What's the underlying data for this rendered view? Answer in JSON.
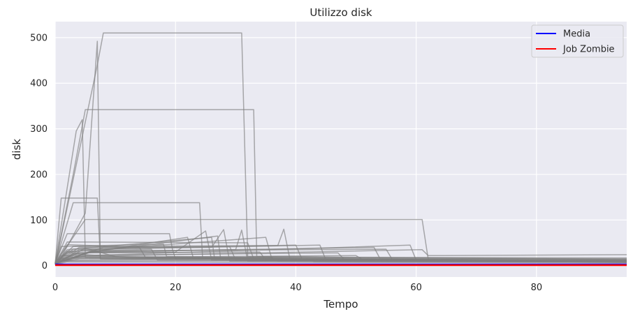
{
  "chart_data": {
    "type": "line",
    "title": "Utilizzo disk",
    "xlabel": "Tempo",
    "ylabel": "disk",
    "xlim": [
      0,
      95
    ],
    "ylim": [
      -25,
      535
    ],
    "xticks": [
      0,
      20,
      40,
      60,
      80
    ],
    "yticks": [
      0,
      100,
      200,
      300,
      400,
      500
    ],
    "grid": true,
    "legend_position": "top-right",
    "colors": {
      "background": "#eaeaf2",
      "grid": "#ffffff",
      "jobs": "#808080",
      "media": "#0000ff",
      "zombie": "#ff0000"
    },
    "legend": [
      {
        "label": "Media",
        "color": "#0000ff"
      },
      {
        "label": "Job Zombie",
        "color": "#ff0000"
      }
    ],
    "series": [
      {
        "values": [
          [
            0,
            2
          ],
          [
            0.5,
            6
          ],
          [
            5,
            115
          ],
          [
            7,
            492
          ],
          [
            7.5,
            15
          ],
          [
            95,
            12
          ]
        ]
      },
      {
        "values": [
          [
            0,
            2
          ],
          [
            7,
            440
          ],
          [
            8,
            510
          ],
          [
            31,
            510
          ],
          [
            32,
            20
          ],
          [
            95,
            14
          ]
        ]
      },
      {
        "values": [
          [
            0,
            2
          ],
          [
            3,
            200
          ],
          [
            5,
            342
          ],
          [
            33,
            342
          ],
          [
            33.5,
            20
          ],
          [
            95,
            13
          ]
        ]
      },
      {
        "values": [
          [
            0,
            5
          ],
          [
            3.5,
            295
          ],
          [
            4.5,
            320
          ],
          [
            5,
            18
          ],
          [
            95,
            11
          ]
        ]
      },
      {
        "values": [
          [
            0,
            5
          ],
          [
            1,
            148
          ],
          [
            7,
            148
          ],
          [
            7.5,
            15
          ],
          [
            95,
            10
          ]
        ]
      },
      {
        "values": [
          [
            0,
            5
          ],
          [
            3,
            138
          ],
          [
            24,
            138
          ],
          [
            24.5,
            15
          ],
          [
            95,
            10
          ]
        ]
      },
      {
        "values": [
          [
            0,
            5
          ],
          [
            5,
            101
          ],
          [
            61,
            101
          ],
          [
            62,
            14
          ],
          [
            95,
            12
          ]
        ]
      },
      {
        "values": [
          [
            0,
            5
          ],
          [
            1,
            38
          ],
          [
            2,
            70
          ],
          [
            19,
            70
          ],
          [
            19.5,
            35
          ],
          [
            20,
            15
          ],
          [
            95,
            9
          ]
        ]
      },
      {
        "values": [
          [
            0,
            5
          ],
          [
            2,
            52
          ],
          [
            32,
            50
          ],
          [
            33,
            15
          ],
          [
            95,
            9
          ]
        ]
      },
      {
        "values": [
          [
            0,
            5
          ],
          [
            4,
            40
          ],
          [
            26,
            40
          ],
          [
            28,
            79
          ],
          [
            29,
            10
          ],
          [
            95,
            8
          ]
        ]
      },
      {
        "values": [
          [
            0,
            5
          ],
          [
            3,
            42
          ],
          [
            37,
            44
          ],
          [
            38,
            80
          ],
          [
            39,
            15
          ],
          [
            95,
            10
          ]
        ]
      },
      {
        "values": [
          [
            0,
            5
          ],
          [
            6,
            30
          ],
          [
            30,
            35
          ],
          [
            31,
            78
          ],
          [
            32,
            10
          ],
          [
            95,
            8
          ]
        ]
      },
      {
        "values": [
          [
            0,
            5
          ],
          [
            2,
            28
          ],
          [
            20,
            30
          ],
          [
            25,
            76
          ],
          [
            26,
            12
          ],
          [
            95,
            8
          ]
        ]
      },
      {
        "values": [
          [
            0,
            5
          ],
          [
            4,
            35
          ],
          [
            44,
            45
          ],
          [
            45,
            12
          ],
          [
            95,
            9
          ]
        ]
      },
      {
        "values": [
          [
            0,
            5
          ],
          [
            5,
            22
          ],
          [
            59,
            45
          ],
          [
            60,
            12
          ],
          [
            95,
            10
          ]
        ]
      },
      {
        "values": [
          [
            0,
            5
          ],
          [
            3,
            36
          ],
          [
            40,
            45
          ],
          [
            41,
            15
          ],
          [
            95,
            10
          ]
        ]
      },
      {
        "values": [
          [
            0,
            5
          ],
          [
            2,
            32
          ],
          [
            55,
            36
          ],
          [
            56,
            14
          ],
          [
            95,
            10
          ]
        ]
      },
      {
        "values": [
          [
            0,
            5
          ],
          [
            4,
            20
          ],
          [
            61,
            35
          ],
          [
            62,
            22
          ],
          [
            95,
            24
          ]
        ]
      },
      {
        "values": [
          [
            0,
            5
          ],
          [
            6,
            30
          ],
          [
            53,
            40
          ],
          [
            54,
            15
          ],
          [
            95,
            10
          ]
        ]
      },
      {
        "values": [
          [
            0,
            5
          ],
          [
            1,
            42
          ],
          [
            18,
            47
          ],
          [
            18.5,
            20
          ],
          [
            95,
            9
          ]
        ]
      },
      {
        "values": [
          [
            0,
            5
          ],
          [
            2,
            46
          ],
          [
            14,
            40
          ],
          [
            15,
            18
          ],
          [
            95,
            9
          ]
        ]
      },
      {
        "values": [
          [
            0,
            5
          ],
          [
            3,
            25
          ],
          [
            27,
            65
          ],
          [
            27.5,
            15
          ],
          [
            95,
            8
          ]
        ]
      },
      {
        "values": [
          [
            0,
            5
          ],
          [
            5,
            28
          ],
          [
            22,
            62
          ],
          [
            23,
            15
          ],
          [
            95,
            8
          ]
        ]
      },
      {
        "values": [
          [
            0,
            5
          ],
          [
            2,
            30
          ],
          [
            35,
            62
          ],
          [
            36,
            15
          ],
          [
            95,
            9
          ]
        ]
      },
      {
        "values": [
          [
            0,
            5
          ],
          [
            1,
            22
          ],
          [
            47,
            28
          ],
          [
            48,
            14
          ],
          [
            95,
            10
          ]
        ]
      },
      {
        "values": [
          [
            0,
            5
          ],
          [
            3,
            18
          ],
          [
            50,
            22
          ],
          [
            51,
            14
          ],
          [
            95,
            9
          ]
        ]
      },
      {
        "values": [
          [
            0,
            5
          ],
          [
            4,
            15
          ],
          [
            36,
            18
          ],
          [
            37,
            10
          ],
          [
            95,
            8
          ]
        ]
      },
      {
        "values": [
          [
            0,
            5
          ],
          [
            2,
            12
          ],
          [
            42,
            15
          ],
          [
            43,
            9
          ],
          [
            95,
            8
          ]
        ]
      },
      {
        "values": [
          [
            0,
            5
          ],
          [
            1,
            10
          ],
          [
            90,
            12
          ],
          [
            95,
            11
          ]
        ]
      },
      {
        "values": [
          [
            0,
            3
          ],
          [
            2,
            8
          ],
          [
            95,
            6
          ]
        ]
      },
      {
        "values": [
          [
            0,
            3
          ],
          [
            5,
            38
          ],
          [
            10,
            20
          ],
          [
            95,
            7
          ]
        ]
      },
      {
        "values": [
          [
            0,
            3
          ],
          [
            3,
            26
          ],
          [
            12,
            18
          ],
          [
            95,
            7
          ]
        ]
      },
      {
        "values": [
          [
            0,
            3
          ],
          [
            1,
            16
          ],
          [
            95,
            15
          ]
        ]
      },
      {
        "values": [
          [
            0,
            3
          ],
          [
            2,
            19
          ],
          [
            95,
            17
          ]
        ]
      },
      {
        "values": [
          [
            0,
            4
          ],
          [
            6,
            32
          ],
          [
            16,
            36
          ],
          [
            17,
            12
          ],
          [
            95,
            9
          ]
        ]
      },
      {
        "values": [
          [
            0,
            4
          ],
          [
            8,
            40
          ],
          [
            29,
            42
          ],
          [
            30,
            12
          ],
          [
            95,
            9
          ]
        ]
      },
      {
        "values": [
          [
            0,
            4
          ],
          [
            4,
            28
          ],
          [
            34,
            30
          ],
          [
            35,
            12
          ],
          [
            95,
            10
          ]
        ]
      },
      {
        "values": [
          [
            0,
            4
          ],
          [
            2,
            35
          ],
          [
            26,
            62
          ],
          [
            26.5,
            14
          ],
          [
            95,
            9
          ]
        ]
      }
    ],
    "media": [
      [
        0,
        3
      ],
      [
        95,
        3
      ]
    ],
    "zombie": [
      [
        0,
        1
      ],
      [
        95,
        1
      ]
    ]
  }
}
